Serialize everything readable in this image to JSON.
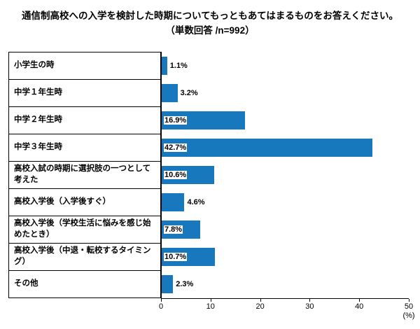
{
  "title": "通信制高校への入学を検討した時期についてもっともあてはまるものをお答えください。（単数回答 /n=992）",
  "chart_data": {
    "type": "bar",
    "orientation": "horizontal",
    "categories": [
      "小学生の時",
      "中学１年生時",
      "中学２年生時",
      "中学３年生時",
      "高校入試の時期に選択肢の一つとして考えた",
      "高校入学後（入学後すぐ）",
      "高校入学後（学校生活に悩みを感じ始めたとき）",
      "高校入学後（中退・転校するタイミング）",
      "その他"
    ],
    "values": [
      1.1,
      3.2,
      16.9,
      42.7,
      10.6,
      4.6,
      7.8,
      10.7,
      2.3
    ],
    "value_labels": [
      "1.1%",
      "3.2%",
      "16.9%",
      "42.7%",
      "10.6%",
      "4.6%",
      "7.8%",
      "10.7%",
      "2.3%"
    ],
    "xlim": [
      0,
      50
    ],
    "xticks": [
      0,
      10,
      20,
      30,
      40,
      50
    ],
    "x_unit": "(%)",
    "bar_color": "#1878be",
    "grid": false,
    "legend": false
  }
}
